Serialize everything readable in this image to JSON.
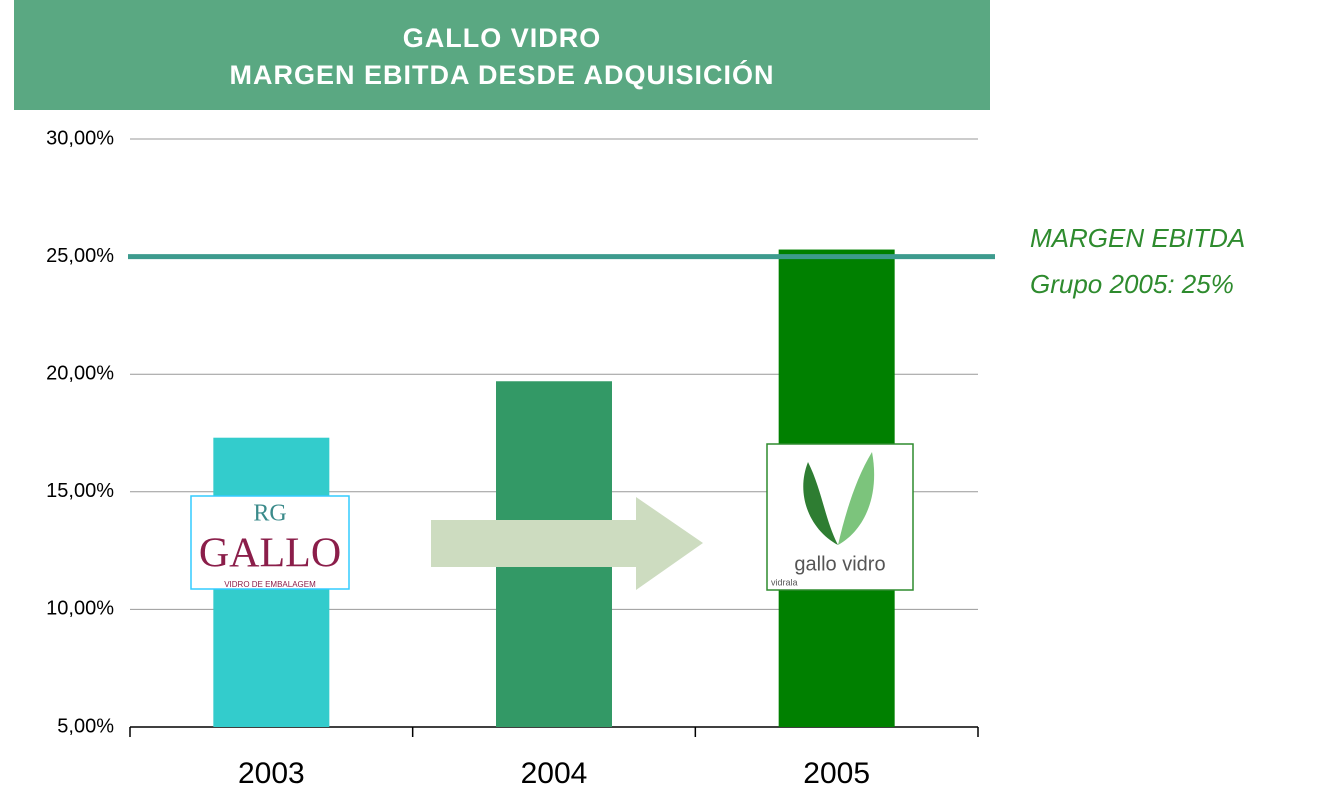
{
  "chart_data": {
    "type": "bar",
    "title": "GALLO VIDRO",
    "subtitle": "MARGEN EBITDA DESDE ADQUISICIÓN",
    "categories": [
      "2003",
      "2004",
      "2005"
    ],
    "values": [
      17.3,
      19.7,
      25.3
    ],
    "colors": [
      "#33cccc",
      "#339966",
      "#008000"
    ],
    "ylim": [
      5,
      30
    ],
    "yticks": [
      {
        "value": 5,
        "label": "5,00%"
      },
      {
        "value": 10,
        "label": "10,00%"
      },
      {
        "value": 15,
        "label": "15,00%"
      },
      {
        "value": 20,
        "label": "20,00%"
      },
      {
        "value": 25,
        "label": "25,00%"
      },
      {
        "value": 30,
        "label": "30,00%"
      }
    ],
    "grid": true,
    "reference_line": {
      "value": 25,
      "color": "#3d9b8e",
      "label": [
        "MARGEN EBITDA",
        "Grupo 2005: 25%"
      ]
    },
    "logos": [
      {
        "monogram": "RG",
        "text": "GALLO",
        "subtext": "VIDRO DE EMBALAGEM"
      },
      {
        "text": "gallo vidro",
        "subtext": "vidrala"
      }
    ]
  }
}
